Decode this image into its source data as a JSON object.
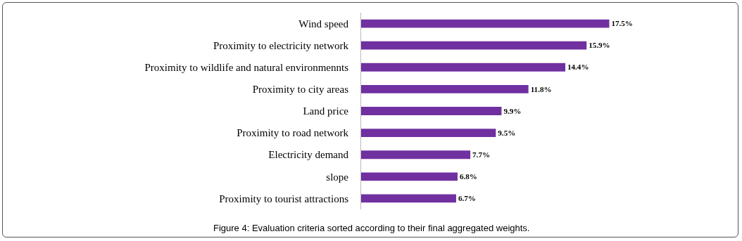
{
  "chart_data": {
    "type": "bar",
    "orientation": "horizontal",
    "categories": [
      "Wind speed",
      "Proximity to electricity network",
      "Proximity to wildlife and natural environmennts",
      "Proximity to city areas",
      "Land price",
      "Proximity to road network",
      "Electricity demand",
      "slope",
      "Proximity to tourist attractions"
    ],
    "values": [
      17.5,
      15.9,
      14.4,
      11.8,
      9.9,
      9.5,
      7.7,
      6.8,
      6.7
    ],
    "value_labels": [
      "17.5%",
      "15.9%",
      "14.4%",
      "11.8%",
      "9.9%",
      "9.5%",
      "7.7%",
      "6.8%",
      "6.7%"
    ],
    "color": "#7030a0",
    "annotations": [
      "Figure 4: Evaluation criteria sorted according to their final aggregated weights."
    ]
  }
}
